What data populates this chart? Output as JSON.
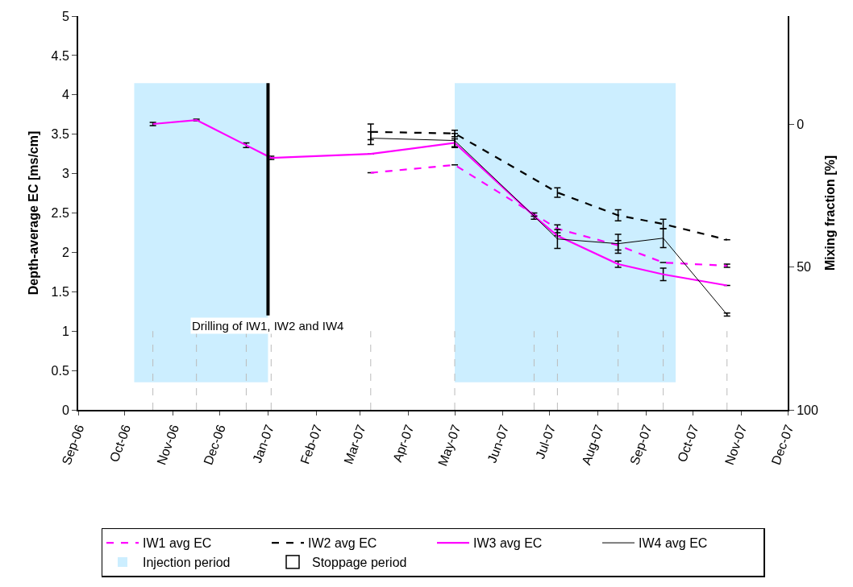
{
  "chart_data": {
    "type": "line",
    "ylabel": "Depth-average EC [ms/cm]",
    "y2label": "Mixing fraction [%]",
    "xlim": [
      "2006-09-01",
      "2007-12-01"
    ],
    "xticks": [
      {
        "value": "2006-09-01",
        "label": "Sep-06"
      },
      {
        "value": "2006-10-01",
        "label": "Oct-06"
      },
      {
        "value": "2006-11-01",
        "label": "Nov-06"
      },
      {
        "value": "2006-12-01",
        "label": "Dec-06"
      },
      {
        "value": "2007-01-01",
        "label": "Jan-07"
      },
      {
        "value": "2007-02-01",
        "label": "Feb-07"
      },
      {
        "value": "2007-03-01",
        "label": "Mar-07"
      },
      {
        "value": "2007-04-01",
        "label": "Apr-07"
      },
      {
        "value": "2007-05-01",
        "label": "May-07"
      },
      {
        "value": "2007-06-01",
        "label": "Jun-07"
      },
      {
        "value": "2007-07-01",
        "label": "Jul-07"
      },
      {
        "value": "2007-08-01",
        "label": "Aug-07"
      },
      {
        "value": "2007-09-01",
        "label": "Sep-07"
      },
      {
        "value": "2007-10-01",
        "label": "Oct-07"
      },
      {
        "value": "2007-11-01",
        "label": "Nov-07"
      },
      {
        "value": "2007-12-01",
        "label": "Dec-07"
      }
    ],
    "ylim": [
      0,
      5
    ],
    "yticks": [
      0,
      0.5,
      1,
      1.5,
      2,
      2.5,
      3,
      3.5,
      4,
      4.5,
      5
    ],
    "y2lim": [
      100,
      -38
    ],
    "y2ticks": [
      0,
      50,
      100
    ],
    "series": [
      {
        "name": "IW1 avg EC",
        "color": "#ff00ff",
        "line_style": "dashed",
        "x": [
          "2007-03-08",
          "2007-05-01",
          "2007-07-06",
          "2007-08-14",
          "2007-09-12",
          "2007-10-23"
        ],
        "values": [
          3.01,
          3.11,
          2.3,
          2.09,
          1.87,
          1.83
        ],
        "errors": [
          null,
          null,
          0.05,
          0.06,
          null,
          0.02
        ]
      },
      {
        "name": "IW2 avg EC",
        "color": "#000000",
        "line_style": "dashed",
        "x": [
          "2007-03-08",
          "2007-05-01",
          "2007-07-06",
          "2007-08-14",
          "2007-09-12",
          "2007-10-23"
        ],
        "values": [
          3.53,
          3.51,
          2.76,
          2.47,
          2.36,
          2.16
        ],
        "errors": [
          0.1,
          0.04,
          0.06,
          0.07,
          0.06,
          null
        ]
      },
      {
        "name": "IW3 avg EC",
        "color": "#ff00ff",
        "line_style": "solid",
        "x": [
          "2006-10-19",
          "2006-11-16",
          "2006-12-18",
          "2007-01-03",
          "2007-03-08",
          "2007-05-01",
          "2007-06-21",
          "2007-07-06",
          "2007-08-14",
          "2007-09-12",
          "2007-10-23"
        ],
        "values": [
          3.63,
          3.68,
          3.36,
          3.2,
          3.25,
          3.39,
          2.46,
          2.21,
          1.85,
          1.72,
          1.58
        ],
        "errors": [
          0.02,
          0.01,
          0.03,
          0.02,
          null,
          0.05,
          0.04,
          null,
          0.04,
          0.08,
          null
        ]
      },
      {
        "name": "IW4 avg EC",
        "color": "#000000",
        "line_style": "solid",
        "x": [
          "2007-03-08",
          "2007-05-01",
          "2007-06-21",
          "2007-07-06",
          "2007-08-14",
          "2007-09-12",
          "2007-10-23"
        ],
        "values": [
          3.45,
          3.42,
          2.46,
          2.17,
          2.11,
          2.18,
          1.21
        ],
        "errors": [
          0.08,
          0.09,
          null,
          0.12,
          0.12,
          0.12,
          0.02
        ]
      }
    ],
    "bands": [
      {
        "axis": "x",
        "from": "2006-10-07",
        "to": "2007-01-01",
        "label": "Injection period",
        "color": "#cceeff"
      },
      {
        "axis": "x",
        "from": "2007-05-01",
        "to": "2007-09-20",
        "color": "#cceeff"
      }
    ],
    "annotations": [
      "Stoppage period"
    ],
    "ref_lines": [
      {
        "axis": "x",
        "value": "2007-01-01",
        "label": "Drilling of IW1, IW2 and IW4",
        "color": "#000000",
        "line_style": "solid"
      },
      {
        "axis": "x",
        "value": "2006-10-19",
        "color": "#bbbbbb",
        "line_style": "dashed"
      },
      {
        "axis": "x",
        "value": "2006-11-16",
        "color": "#bbbbbb",
        "line_style": "dashed"
      },
      {
        "axis": "x",
        "value": "2006-12-18",
        "color": "#bbbbbb",
        "line_style": "dashed"
      },
      {
        "axis": "x",
        "value": "2007-01-03",
        "color": "#bbbbbb",
        "line_style": "dashed"
      },
      {
        "axis": "x",
        "value": "2007-03-08",
        "color": "#bbbbbb",
        "line_style": "dashed"
      },
      {
        "axis": "x",
        "value": "2007-05-01",
        "color": "#bbbbbb",
        "line_style": "dashed"
      },
      {
        "axis": "x",
        "value": "2007-06-21",
        "color": "#bbbbbb",
        "line_style": "dashed"
      },
      {
        "axis": "x",
        "value": "2007-07-06",
        "color": "#bbbbbb",
        "line_style": "dashed"
      },
      {
        "axis": "x",
        "value": "2007-08-14",
        "color": "#bbbbbb",
        "line_style": "dashed"
      },
      {
        "axis": "x",
        "value": "2007-09-12",
        "color": "#bbbbbb",
        "line_style": "dashed"
      },
      {
        "axis": "x",
        "value": "2007-10-23",
        "color": "#bbbbbb",
        "line_style": "dashed"
      }
    ],
    "grid": false,
    "legend": "bottom"
  }
}
